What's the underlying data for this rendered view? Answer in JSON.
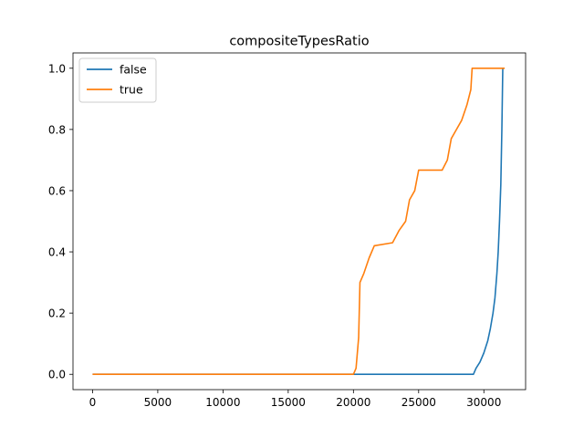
{
  "chart_data": {
    "type": "line",
    "title": "compositeTypesRatio",
    "xlabel": "",
    "ylabel": "",
    "xlim": [
      -1500,
      33200
    ],
    "ylim": [
      -0.05,
      1.05
    ],
    "xticks": [
      0,
      5000,
      10000,
      15000,
      20000,
      25000,
      30000
    ],
    "xtick_labels": [
      "0",
      "5000",
      "10000",
      "15000",
      "20000",
      "25000",
      "30000"
    ],
    "yticks": [
      0.0,
      0.2,
      0.4,
      0.6,
      0.8,
      1.0
    ],
    "ytick_labels": [
      "0.0",
      "0.2",
      "0.4",
      "0.6",
      "0.8",
      "1.0"
    ],
    "grid": false,
    "legend_position": "top-left",
    "series": [
      {
        "name": "false",
        "color": "#1f77b4",
        "points": [
          [
            0,
            0.0
          ],
          [
            20100,
            0.0
          ],
          [
            29200,
            0.0
          ],
          [
            29400,
            0.02
          ],
          [
            29700,
            0.04
          ],
          [
            30000,
            0.07
          ],
          [
            30300,
            0.11
          ],
          [
            30500,
            0.15
          ],
          [
            30700,
            0.2
          ],
          [
            30850,
            0.25
          ],
          [
            31000,
            0.33
          ],
          [
            31100,
            0.4
          ],
          [
            31200,
            0.5
          ],
          [
            31300,
            0.62
          ],
          [
            31380,
            0.8
          ],
          [
            31450,
            1.0
          ]
        ]
      },
      {
        "name": "true",
        "color": "#ff7f0e",
        "points": [
          [
            0,
            0.0
          ],
          [
            20000,
            0.0
          ],
          [
            20200,
            0.02
          ],
          [
            20400,
            0.12
          ],
          [
            20500,
            0.3
          ],
          [
            20800,
            0.33
          ],
          [
            21200,
            0.38
          ],
          [
            21600,
            0.42
          ],
          [
            23000,
            0.43
          ],
          [
            23500,
            0.47
          ],
          [
            24000,
            0.5
          ],
          [
            24300,
            0.57
          ],
          [
            24700,
            0.6
          ],
          [
            25000,
            0.667
          ],
          [
            26800,
            0.667
          ],
          [
            27200,
            0.7
          ],
          [
            27500,
            0.77
          ],
          [
            27900,
            0.8
          ],
          [
            28300,
            0.83
          ],
          [
            28700,
            0.88
          ],
          [
            29000,
            0.93
          ],
          [
            29100,
            1.0
          ],
          [
            31600,
            1.0
          ]
        ]
      }
    ]
  }
}
